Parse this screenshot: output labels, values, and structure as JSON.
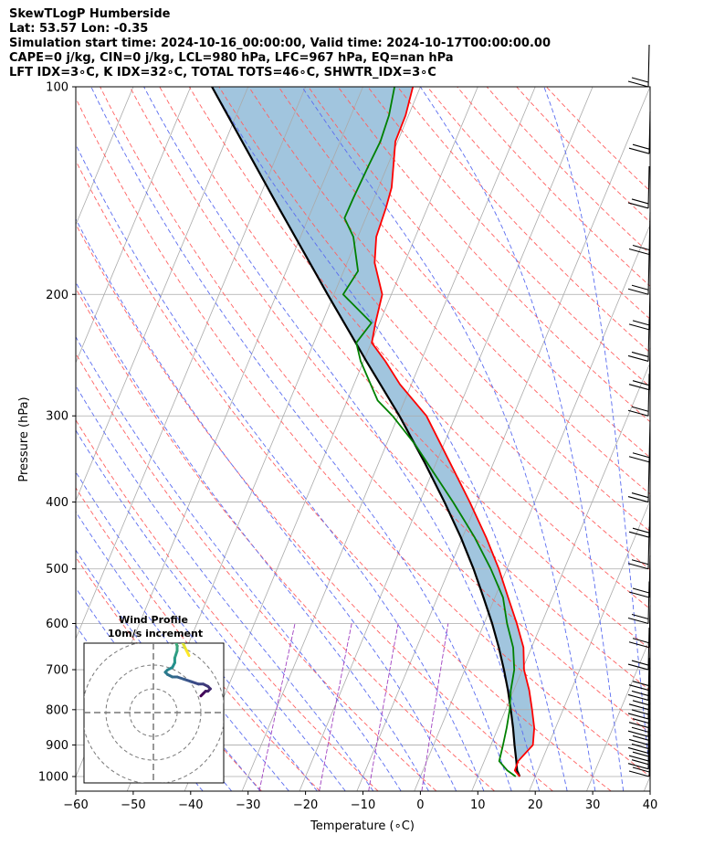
{
  "header": {
    "line1": "SkewTLogP Humberside",
    "line2": "Lat: 53.57   Lon: -0.35",
    "line3": "Simulation start time: 2024-10-16_00:00:00, Valid time: 2024-10-17T00:00:00.00",
    "line4": "CAPE=0 j/kg, CIN=0 j/kg, LCL=980 hPa, LFC=967 hPa, EQ=nan hPa",
    "line5": "LFT IDX=3∘C, K IDX=32∘C, TOTAL TOTS=46∘C, SHWTR_IDX=3∘C"
  },
  "chart_data": {
    "type": "line",
    "xlabel": "Temperature (∘C)",
    "ylabel": "Pressure (hPa)",
    "xlim": [
      -60,
      40
    ],
    "ylim": [
      1050,
      100
    ],
    "yscale": "log",
    "skew_x_per_decade_log_p": 50,
    "xticks": [
      -60,
      -50,
      -40,
      -30,
      -20,
      -10,
      0,
      10,
      20,
      30,
      40
    ],
    "yticks": [
      100,
      200,
      300,
      400,
      500,
      600,
      700,
      800,
      900,
      1000
    ],
    "colors": {
      "temperature": "#ff0000",
      "dewpoint": "#008000",
      "parcel": "#000000",
      "shade": "#8ab6d6",
      "dry_adiabat": "#ff6060",
      "moist_adiabat": "#5a6cf0",
      "mixing_ratio": "#a040c0",
      "isotherm": "#aaaaaa"
    },
    "series": [
      {
        "key": "temperature",
        "points": [
          [
            1000,
            17.3
          ],
          [
            980,
            16.0
          ],
          [
            950,
            15.9
          ],
          [
            900,
            17.3
          ],
          [
            850,
            16.3
          ],
          [
            800,
            14.6
          ],
          [
            750,
            12.7
          ],
          [
            700,
            10.3
          ],
          [
            650,
            8.6
          ],
          [
            600,
            5.7
          ],
          [
            550,
            2.3
          ],
          [
            500,
            -1.4
          ],
          [
            450,
            -5.9
          ],
          [
            400,
            -11.3
          ],
          [
            350,
            -17.7
          ],
          [
            300,
            -25.1
          ],
          [
            270,
            -32.0
          ],
          [
            250,
            -36.2
          ],
          [
            235,
            -39.9
          ],
          [
            220,
            -40.7
          ],
          [
            200,
            -41.6
          ],
          [
            180,
            -45.2
          ],
          [
            165,
            -46.8
          ],
          [
            150,
            -47.2
          ],
          [
            140,
            -47.7
          ],
          [
            130,
            -49.0
          ],
          [
            120,
            -50.4
          ],
          [
            110,
            -50.5
          ],
          [
            100,
            -51.3
          ]
        ]
      },
      {
        "key": "dewpoint",
        "points": [
          [
            1000,
            16.6
          ],
          [
            980,
            14.7
          ],
          [
            950,
            12.6
          ],
          [
            900,
            12.1
          ],
          [
            850,
            11.5
          ],
          [
            800,
            10.7
          ],
          [
            750,
            9.5
          ],
          [
            700,
            8.6
          ],
          [
            650,
            6.8
          ],
          [
            600,
            4.0
          ],
          [
            550,
            1.4
          ],
          [
            500,
            -2.8
          ],
          [
            450,
            -7.9
          ],
          [
            400,
            -14.2
          ],
          [
            350,
            -21.7
          ],
          [
            330,
            -25.0
          ],
          [
            300,
            -31.0
          ],
          [
            285,
            -34.7
          ],
          [
            250,
            -40.5
          ],
          [
            235,
            -42.6
          ],
          [
            220,
            -41.4
          ],
          [
            200,
            -48.4
          ],
          [
            185,
            -47.5
          ],
          [
            165,
            -50.8
          ],
          [
            155,
            -53.7
          ],
          [
            145,
            -53.6
          ],
          [
            130,
            -53.3
          ],
          [
            120,
            -53.0
          ],
          [
            110,
            -53.4
          ],
          [
            100,
            -54.5
          ]
        ]
      },
      {
        "key": "parcel",
        "points": [
          [
            1000,
            17.3
          ],
          [
            980,
            16.4
          ],
          [
            950,
            15.6
          ],
          [
            900,
            14.1
          ],
          [
            850,
            12.6
          ],
          [
            800,
            10.9
          ],
          [
            750,
            9.0
          ],
          [
            700,
            6.8
          ],
          [
            650,
            4.3
          ],
          [
            600,
            1.4
          ],
          [
            550,
            -2.0
          ],
          [
            500,
            -5.8
          ],
          [
            450,
            -10.3
          ],
          [
            400,
            -15.7
          ],
          [
            350,
            -22.1
          ],
          [
            300,
            -29.8
          ],
          [
            250,
            -39.5
          ],
          [
            200,
            -51.1
          ],
          [
            150,
            -65.8
          ],
          [
            100,
            -86.3
          ]
        ]
      }
    ],
    "wind_barbs_pressures": [
      1000,
      975,
      950,
      925,
      900,
      875,
      850,
      825,
      800,
      775,
      750,
      700,
      650,
      600,
      550,
      500,
      450,
      400,
      350,
      300,
      275,
      250,
      225,
      200,
      175,
      150,
      125,
      100
    ],
    "hodograph": {
      "title": "Wind Profile",
      "subtitle": "10m/s increment",
      "rings": [
        10,
        20,
        30
      ],
      "points_uv": [
        [
          20,
          7
        ],
        [
          21,
          8
        ],
        [
          22,
          9
        ],
        [
          23,
          9
        ],
        [
          24,
          10
        ],
        [
          23,
          11
        ],
        [
          21,
          12
        ],
        [
          19,
          12
        ],
        [
          16,
          13
        ],
        [
          13,
          14
        ],
        [
          10,
          15
        ],
        [
          8,
          15
        ],
        [
          6,
          16
        ],
        [
          5,
          17
        ],
        [
          6,
          18
        ],
        [
          8,
          19
        ],
        [
          9,
          21
        ],
        [
          9,
          23
        ],
        [
          10,
          26
        ],
        [
          10,
          28
        ],
        [
          9,
          31
        ],
        [
          8,
          33
        ],
        [
          6,
          34
        ],
        [
          4,
          35
        ],
        [
          5,
          36
        ],
        [
          7,
          36
        ],
        [
          9,
          35
        ],
        [
          10,
          34
        ],
        [
          11,
          32
        ],
        [
          12,
          30
        ],
        [
          13,
          28
        ],
        [
          14,
          26
        ],
        [
          15,
          24
        ]
      ]
    }
  }
}
